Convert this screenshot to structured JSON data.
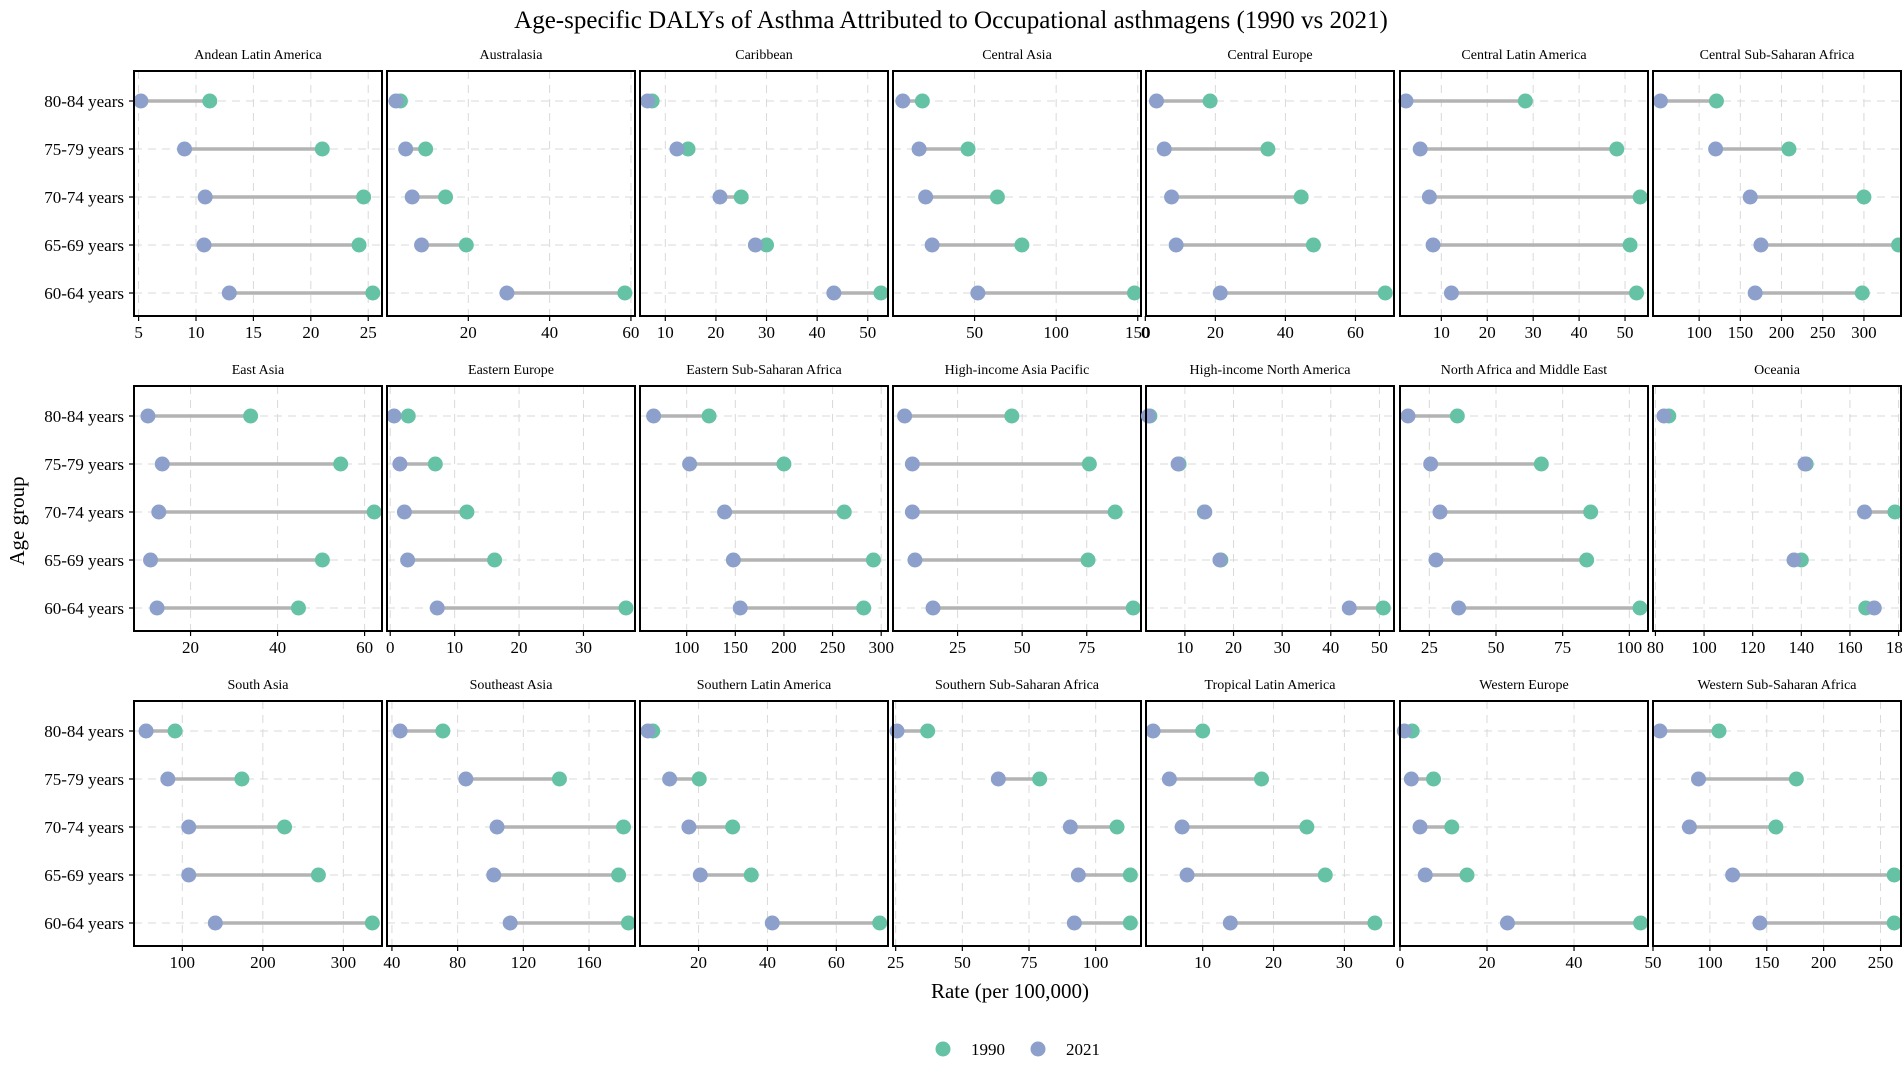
{
  "chart_data": {
    "type": "dumbbell",
    "title": "Age-specific DALYs of Asthma Attributed to Occupational asthmagens (1990 vs 2021)",
    "xlabel": "Rate (per 100,000)",
    "ylabel": "Age group",
    "age_groups": [
      "80-84 years",
      "75-79 years",
      "70-74 years",
      "65-69 years",
      "60-64 years"
    ],
    "legend": [
      {
        "name": "1990",
        "color": "#66c2a5"
      },
      {
        "name": "2021",
        "color": "#8da0cb"
      }
    ],
    "segment_color": "#b3b3b3",
    "panels": [
      {
        "region": "Andean Latin America",
        "xlim": [
          4.6,
          26.2
        ],
        "ticks": [
          5,
          10,
          15,
          20,
          25
        ],
        "tick_labels": [
          "5",
          "10",
          "15",
          "20",
          "25"
        ],
        "values_1990": [
          11.2,
          21,
          24.6,
          24.2,
          25.4
        ],
        "values_2021": [
          5.2,
          9,
          10.8,
          10.7,
          12.9
        ]
      },
      {
        "region": "Australasia",
        "xlim": [
          0,
          61
        ],
        "ticks": [
          20,
          40,
          60
        ],
        "tick_labels": [
          "20",
          "40",
          "60"
        ],
        "values_1990": [
          3.3,
          9.5,
          14.4,
          19.5,
          58.5
        ],
        "values_2021": [
          2.2,
          4.6,
          6.2,
          8.5,
          29.5
        ]
      },
      {
        "region": "Caribbean",
        "xlim": [
          5,
          54
        ],
        "ticks": [
          10,
          20,
          30,
          40,
          50
        ],
        "tick_labels": [
          "10",
          "20",
          "30",
          "40",
          "50"
        ],
        "values_1990": [
          7.4,
          14.5,
          25,
          30,
          52.6
        ],
        "values_2021": [
          6.5,
          12.3,
          20.8,
          27.8,
          43.3
        ]
      },
      {
        "region": "Central Asia",
        "xlim": [
          0,
          152
        ],
        "ticks": [
          50,
          100,
          150
        ],
        "tick_labels": [
          "50",
          "100",
          "150"
        ],
        "values_1990": [
          18,
          46,
          64,
          79,
          148
        ],
        "values_2021": [
          6,
          16,
          20,
          24,
          52
        ]
      },
      {
        "region": "Central Europe",
        "xlim": [
          0.2,
          71
        ],
        "ticks": [
          0,
          20,
          40,
          60
        ],
        "tick_labels": [
          "0",
          "20",
          "40",
          "60"
        ],
        "values_1990": [
          18.5,
          35,
          44.5,
          48,
          68.5
        ],
        "values_2021": [
          3.2,
          5.4,
          7.5,
          8.8,
          21.4
        ]
      },
      {
        "region": "Central Latin America",
        "xlim": [
          1,
          55
        ],
        "ticks": [
          10,
          20,
          30,
          40,
          50
        ],
        "tick_labels": [
          "10",
          "20",
          "30",
          "40",
          "50"
        ],
        "values_1990": [
          28.3,
          48.2,
          53.3,
          51.1,
          52.5
        ],
        "values_2021": [
          2.3,
          5.4,
          7.4,
          8.2,
          12.2
        ]
      },
      {
        "region": "Central Sub-Saharan Africa",
        "xlim": [
          44,
          345
        ],
        "ticks": [
          100,
          150,
          200,
          250,
          300
        ],
        "tick_labels": [
          "100",
          "150",
          "200",
          "250",
          "300"
        ],
        "values_1990": [
          121,
          209,
          300,
          342,
          298
        ],
        "values_2021": [
          53,
          120,
          162,
          175,
          168
        ]
      },
      {
        "region": "East Asia",
        "xlim": [
          7,
          64
        ],
        "ticks": [
          20,
          40,
          60
        ],
        "tick_labels": [
          "20",
          "40",
          "60"
        ],
        "values_1990": [
          33.8,
          54.5,
          62.2,
          50.3,
          44.8
        ],
        "values_2021": [
          10.2,
          13.5,
          12.7,
          10.8,
          12.3
        ]
      },
      {
        "region": "Eastern Europe",
        "xlim": [
          -0.5,
          38
        ],
        "ticks": [
          0,
          10,
          20,
          30
        ],
        "tick_labels": [
          "0",
          "10",
          "20",
          "30"
        ],
        "values_1990": [
          2.8,
          7,
          11.9,
          16.2,
          36.6
        ],
        "values_2021": [
          0.6,
          1.5,
          2.2,
          2.7,
          7.3
        ]
      },
      {
        "region": "Eastern Sub-Saharan Africa",
        "xlim": [
          52,
          307
        ],
        "ticks": [
          100,
          150,
          200,
          250,
          300
        ],
        "tick_labels": [
          "100",
          "150",
          "200",
          "250",
          "300"
        ],
        "values_1990": [
          123,
          200,
          262,
          292,
          282
        ],
        "values_2021": [
          66,
          103,
          139,
          148,
          155
        ]
      },
      {
        "region": "High-income Asia Pacific",
        "xlim": [
          0,
          96
        ],
        "ticks": [
          25,
          50,
          75
        ],
        "tick_labels": [
          "25",
          "50",
          "75"
        ],
        "values_1990": [
          46,
          76,
          86,
          75.5,
          93
        ],
        "values_2021": [
          4.5,
          7.5,
          7.5,
          8.5,
          15.5
        ]
      },
      {
        "region": "High-income North America",
        "xlim": [
          2,
          53
        ],
        "ticks": [
          10,
          20,
          30,
          40,
          50
        ],
        "tick_labels": [
          "10",
          "20",
          "30",
          "40",
          "50"
        ],
        "values_1990": [
          2.8,
          8.8,
          14,
          17.4,
          50.8
        ],
        "values_2021": [
          2.5,
          8.6,
          14.1,
          17.2,
          43.8
        ]
      },
      {
        "region": "North Africa and Middle East",
        "xlim": [
          14,
          107
        ],
        "ticks": [
          25,
          50,
          75,
          100
        ],
        "tick_labels": [
          "25",
          "50",
          "75",
          "100"
        ],
        "values_1990": [
          35.5,
          67,
          85.5,
          84,
          104
        ],
        "values_2021": [
          17,
          25.5,
          29,
          27.5,
          36
        ]
      },
      {
        "region": "Oceania",
        "xlim": [
          79,
          181
        ],
        "ticks": [
          80,
          100,
          120,
          140,
          160,
          180
        ],
        "tick_labels": [
          "80",
          "100",
          "120",
          "140",
          "160",
          "180"
        ],
        "values_1990": [
          85.5,
          142,
          178.5,
          140,
          166.5
        ],
        "values_2021": [
          83.5,
          141.5,
          166,
          137,
          170
        ]
      },
      {
        "region": "South Asia",
        "xlim": [
          40,
          348
        ],
        "ticks": [
          100,
          200,
          300
        ],
        "tick_labels": [
          "100",
          "200",
          "300"
        ],
        "values_1990": [
          91,
          174,
          227,
          269,
          336
        ],
        "values_2021": [
          55,
          82,
          108,
          108,
          141
        ]
      },
      {
        "region": "Southeast Asia",
        "xlim": [
          37,
          188
        ],
        "ticks": [
          40,
          80,
          120,
          160
        ],
        "tick_labels": [
          "40",
          "80",
          "120",
          "160"
        ],
        "values_1990": [
          71,
          142,
          181,
          178,
          184
        ],
        "values_2021": [
          45,
          85,
          104,
          102,
          112
        ]
      },
      {
        "region": "Southern Latin America",
        "xlim": [
          3,
          75
        ],
        "ticks": [
          20,
          40,
          60
        ],
        "tick_labels": [
          "20",
          "40",
          "60"
        ],
        "values_1990": [
          6.7,
          20.2,
          29.9,
          35.3,
          72.6
        ],
        "values_2021": [
          5.3,
          11.6,
          17.2,
          20.5,
          41.4
        ]
      },
      {
        "region": "Southern Sub-Saharan Africa",
        "xlim": [
          24,
          117
        ],
        "ticks": [
          25,
          50,
          75,
          100
        ],
        "tick_labels": [
          "25",
          "50",
          "75",
          "100"
        ],
        "values_1990": [
          37,
          79,
          108,
          113,
          113
        ],
        "values_2021": [
          25.5,
          63.5,
          90.5,
          93.5,
          92
        ]
      },
      {
        "region": "Tropical Latin America",
        "xlim": [
          2,
          37
        ],
        "ticks": [
          10,
          20,
          30
        ],
        "tick_labels": [
          "10",
          "20",
          "30"
        ],
        "values_1990": [
          10,
          18.3,
          24.7,
          27.3,
          34.3
        ],
        "values_2021": [
          3,
          5.3,
          7.1,
          7.8,
          13.9
        ]
      },
      {
        "region": "Western Europe",
        "xlim": [
          0,
          57
        ],
        "ticks": [
          0,
          20,
          40
        ],
        "tick_labels": [
          "0",
          "20",
          "40"
        ],
        "values_1990": [
          2.8,
          7.7,
          11.9,
          15.4,
          55.3
        ],
        "values_2021": [
          1,
          2.6,
          4.6,
          5.8,
          24.7
        ]
      },
      {
        "region": "Western Sub-Saharan Africa",
        "xlim": [
          50,
          268
        ],
        "ticks": [
          50,
          100,
          150,
          200,
          250
        ],
        "tick_labels": [
          "50",
          "100",
          "150",
          "200",
          "250"
        ],
        "values_1990": [
          108,
          176,
          158,
          262,
          262
        ],
        "values_2021": [
          56,
          90,
          82,
          120,
          144
        ]
      }
    ]
  }
}
